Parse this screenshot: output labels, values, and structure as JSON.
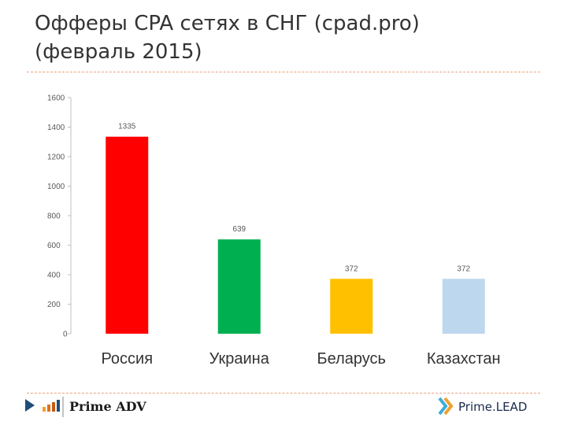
{
  "slide": {
    "title_line1": "Офферы CPA сетях в СНГ (cpad.pro)",
    "title_line2": "(февраль 2015)"
  },
  "chart_data": {
    "type": "bar",
    "categories": [
      "Россия",
      "Украина",
      "Беларусь",
      "Казахстан"
    ],
    "values": [
      1335,
      639,
      372,
      372
    ],
    "data_labels": [
      "1335",
      "639",
      "372",
      "372"
    ],
    "colors": [
      "#ff0000",
      "#00b050",
      "#ffc000",
      "#bdd7ee"
    ],
    "ylim": [
      0,
      1600
    ],
    "yticks": [
      0,
      200,
      400,
      600,
      800,
      1000,
      1200,
      1400,
      1600
    ],
    "title": "",
    "xlabel": "",
    "ylabel": "",
    "grid": false,
    "legend": "none"
  },
  "footer": {
    "left_brand": "Prime ADV",
    "right_brand": "Prime.LEAD",
    "left_icons": [
      "play-arrow-icon",
      "bar-chart-icon"
    ],
    "right_icons": [
      "chevron-logo-icon"
    ]
  }
}
